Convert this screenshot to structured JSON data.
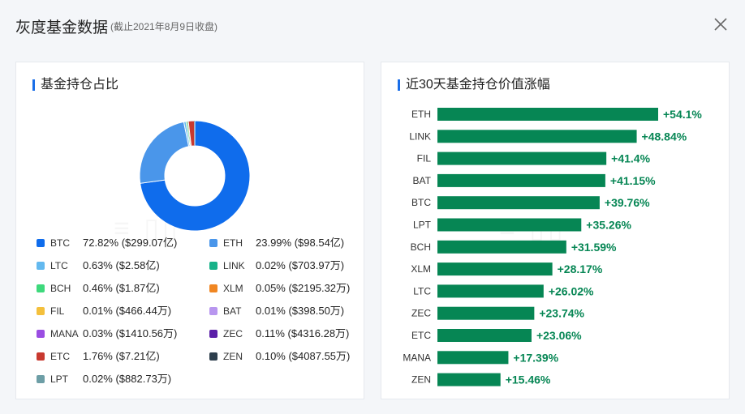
{
  "header": {
    "title": "灰度基金数据",
    "subtitle": "(截止2021年8月9日收盘)"
  },
  "left_panel": {
    "title": "基金持仓占比"
  },
  "right_panel": {
    "title": "近30天基金持仓价值涨幅"
  },
  "chart_data": [
    {
      "type": "pie",
      "title": "基金持仓占比",
      "donut": true,
      "slices": [
        {
          "name": "BTC",
          "percent": 72.82,
          "percent_label": "72.82%",
          "amount": "($299.07亿)",
          "color": "#0f6cec"
        },
        {
          "name": "ETH",
          "percent": 23.99,
          "percent_label": "23.99%",
          "amount": "($98.54亿)",
          "color": "#4a96ea"
        },
        {
          "name": "LTC",
          "percent": 0.63,
          "percent_label": "0.63%",
          "amount": "($2.58亿)",
          "color": "#63b9ef"
        },
        {
          "name": "LINK",
          "percent": 0.02,
          "percent_label": "0.02%",
          "amount": "($703.97万)",
          "color": "#17b289"
        },
        {
          "name": "BCH",
          "percent": 0.46,
          "percent_label": "0.46%",
          "amount": "($1.87亿)",
          "color": "#3ed97c"
        },
        {
          "name": "XLM",
          "percent": 0.05,
          "percent_label": "0.05%",
          "amount": "($2195.32万)",
          "color": "#f08622"
        },
        {
          "name": "FIL",
          "percent": 0.01,
          "percent_label": "0.01%",
          "amount": "($466.44万)",
          "color": "#f4c03c"
        },
        {
          "name": "BAT",
          "percent": 0.01,
          "percent_label": "0.01%",
          "amount": "($398.50万)",
          "color": "#b896ef"
        },
        {
          "name": "MANA",
          "percent": 0.03,
          "percent_label": "0.03%",
          "amount": "($1410.56万)",
          "color": "#9a4de2"
        },
        {
          "name": "ZEC",
          "percent": 0.11,
          "percent_label": "0.11%",
          "amount": "($4316.28万)",
          "color": "#5b1fa8"
        },
        {
          "name": "ETC",
          "percent": 1.76,
          "percent_label": "1.76%",
          "amount": "($7.21亿)",
          "color": "#c8392f"
        },
        {
          "name": "ZEN",
          "percent": 0.1,
          "percent_label": "0.10%",
          "amount": "($4087.55万)",
          "color": "#2d3e4d"
        },
        {
          "name": "LPT",
          "percent": 0.02,
          "percent_label": "0.02%",
          "amount": "($882.73万)",
          "color": "#6d9ea6"
        }
      ]
    },
    {
      "type": "bar",
      "orientation": "horizontal",
      "title": "近30天基金持仓价值涨幅",
      "categories": [
        "ETH",
        "LINK",
        "FIL",
        "BAT",
        "BTC",
        "LPT",
        "BCH",
        "XLM",
        "LTC",
        "ZEC",
        "ETC",
        "MANA",
        "ZEN"
      ],
      "values": [
        54.1,
        48.84,
        41.4,
        41.15,
        39.76,
        35.26,
        31.59,
        28.17,
        26.02,
        23.74,
        23.06,
        17.39,
        15.46
      ],
      "labels": [
        "+54.1%",
        "+48.84%",
        "+41.4%",
        "+41.15%",
        "+39.76%",
        "+35.26%",
        "+31.59%",
        "+28.17%",
        "+26.02%",
        "+23.74%",
        "+23.06%",
        "+17.39%",
        "+15.46%"
      ],
      "bar_color": "#068654",
      "label_color": "#068654"
    }
  ]
}
